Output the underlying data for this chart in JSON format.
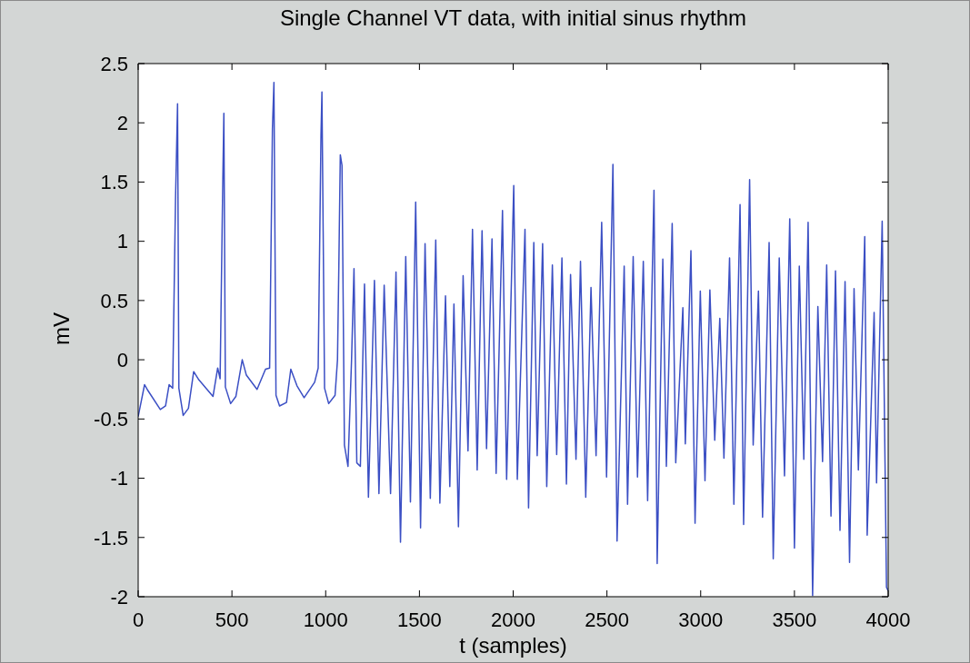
{
  "chart_data": {
    "type": "line",
    "title": "Single Channel VT data, with initial sinus rhythm",
    "xlabel": "t (samples)",
    "ylabel": "mV",
    "x": [
      0,
      34,
      52,
      118,
      146,
      165,
      184,
      199,
      210,
      217,
      240,
      268,
      296,
      324,
      399,
      424,
      437,
      450,
      457,
      465,
      493,
      521,
      555,
      577,
      634,
      679,
      701,
      716,
      724,
      735,
      754,
      791,
      814,
      847,
      885,
      941,
      960,
      975,
      980,
      994,
      1016,
      1050,
      1063,
      1070,
      1078,
      1087,
      1100,
      1119,
      1138,
      1151,
      1166,
      1185,
      1207,
      1228,
      1260,
      1284,
      1312,
      1346,
      1375,
      1399,
      1427,
      1452,
      1480,
      1506,
      1530,
      1558,
      1587,
      1609,
      1639,
      1662,
      1684,
      1708,
      1733,
      1759,
      1783,
      1808,
      1834,
      1858,
      1887,
      1909,
      1943,
      1965,
      2003,
      2022,
      2063,
      2082,
      2110,
      2128,
      2157,
      2179,
      2209,
      2232,
      2260,
      2284,
      2306,
      2335,
      2359,
      2387,
      2415,
      2442,
      2472,
      2498,
      2532,
      2554,
      2592,
      2610,
      2640,
      2663,
      2694,
      2717,
      2751,
      2768,
      2798,
      2817,
      2848,
      2867,
      2905,
      2918,
      2948,
      2970,
      2998,
      3023,
      3049,
      3075,
      3102,
      3124,
      3154,
      3177,
      3210,
      3229,
      3261,
      3280,
      3308,
      3330,
      3365,
      3387,
      3419,
      3447,
      3475,
      3500,
      3526,
      3550,
      3573,
      3597,
      3625,
      3650,
      3672,
      3695,
      3719,
      3743,
      3770,
      3794,
      3818,
      3841,
      3875,
      3888,
      3925,
      3938,
      3968,
      3991,
      4000
    ],
    "values": [
      -0.48,
      -0.21,
      -0.26,
      -0.42,
      -0.39,
      -0.21,
      -0.24,
      1.34,
      2.16,
      -0.24,
      -0.47,
      -0.41,
      -0.1,
      -0.17,
      -0.31,
      -0.07,
      -0.16,
      1.37,
      2.08,
      -0.23,
      -0.37,
      -0.31,
      0,
      -0.13,
      -0.25,
      -0.08,
      -0.07,
      1.95,
      2.34,
      -0.3,
      -0.39,
      -0.36,
      -0.08,
      -0.22,
      -0.32,
      -0.19,
      -0.07,
      1.9,
      2.26,
      -0.24,
      -0.37,
      -0.3,
      0,
      0.77,
      1.73,
      1.64,
      -0.72,
      -0.9,
      0,
      0.77,
      -0.87,
      -0.9,
      0.64,
      -1.16,
      0.67,
      -1.13,
      0.63,
      -1.13,
      0.74,
      -1.54,
      0.87,
      -1.2,
      1.33,
      -1.42,
      0.98,
      -1.17,
      1.01,
      -1.21,
      0.54,
      -1.07,
      0.47,
      -1.41,
      0.71,
      -0.77,
      1.1,
      -0.93,
      1.09,
      -0.75,
      1.02,
      -0.96,
      1.26,
      -1.01,
      1.47,
      -1.01,
      1.1,
      -1.25,
      0.99,
      -0.81,
      0.98,
      -1.07,
      0.8,
      -0.8,
      0.86,
      -1.05,
      0.72,
      -0.84,
      0.83,
      -1.16,
      0.61,
      -0.81,
      1.16,
      -0.99,
      1.65,
      -1.53,
      0.79,
      -1.22,
      0.87,
      -0.99,
      0.83,
      -1.19,
      1.43,
      -1.72,
      0.85,
      -0.9,
      1.15,
      -0.87,
      0.44,
      -0.71,
      0.92,
      -1.38,
      0.58,
      -1.02,
      0.59,
      -0.68,
      0.35,
      -0.83,
      0.86,
      -1.22,
      1.31,
      -1.39,
      1.52,
      -0.72,
      0.58,
      -1.33,
      0.99,
      -1.68,
      0.86,
      -0.98,
      1.19,
      -1.59,
      0.79,
      -0.84,
      1.16,
      -1.99,
      0.45,
      -0.86,
      0.8,
      -1.32,
      0.75,
      -1.44,
      0.66,
      -1.71,
      0.6,
      -0.93,
      1.04,
      -1.48,
      0.4,
      -1.04,
      1.17,
      -1.92,
      -1.95
    ],
    "color": "#3b4fc4",
    "line_style": "solid",
    "xlim": [
      0,
      4000
    ],
    "ylim": [
      -2,
      2.5
    ],
    "xticks": [
      0,
      500,
      1000,
      1500,
      2000,
      2500,
      3000,
      3500,
      4000
    ],
    "yticks": [
      -2,
      -1.5,
      -1,
      -0.5,
      0,
      0.5,
      1,
      1.5,
      2,
      2.5
    ]
  }
}
